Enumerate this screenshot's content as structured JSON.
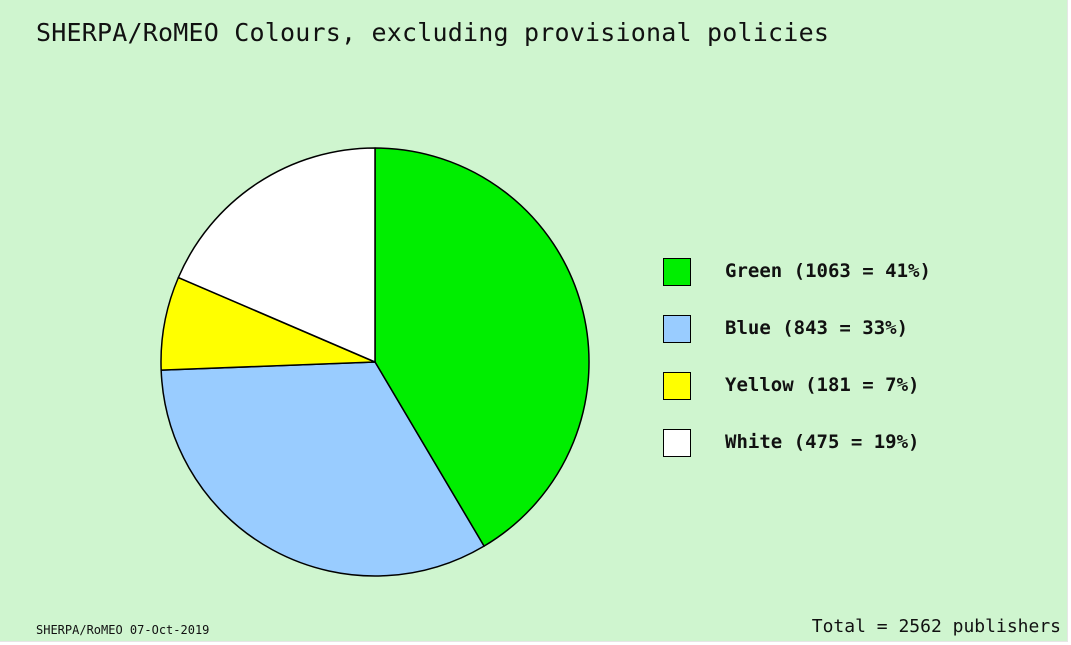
{
  "chart_data": {
    "type": "pie",
    "title": "SHERPA/RoMEO Colours, excluding provisional policies",
    "slices": [
      {
        "name": "Green",
        "value": 1063,
        "percent": 41,
        "label": "Green (1063 = 41%)",
        "color": "#00ee00"
      },
      {
        "name": "Blue",
        "value": 843,
        "percent": 33,
        "label": "Blue (843 = 33%)",
        "color": "#99ccff"
      },
      {
        "name": "Yellow",
        "value": 181,
        "percent": 7,
        "label": "Yellow (181 = 7%)",
        "color": "#ffff00"
      },
      {
        "name": "White",
        "value": 475,
        "percent": 19,
        "label": "White (475 = 19%)",
        "color": "#ffffff"
      }
    ],
    "total": 2562,
    "start_angle": "12 o'clock",
    "direction": "clockwise",
    "legend_position": "right"
  },
  "footer": {
    "source": "SHERPA/RoMEO 07-Oct-2019",
    "total": "Total = 2562 publishers"
  },
  "colors": {
    "background": "#cff5cf",
    "outline": "#000000",
    "text": "#111111"
  }
}
